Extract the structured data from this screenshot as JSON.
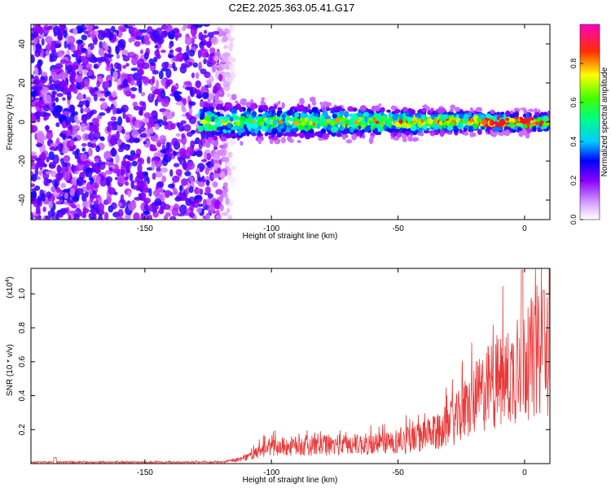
{
  "title": "C2E2.2025.363.05.41.G17",
  "chart_data": [
    {
      "type": "heatmap",
      "xlabel": "Height of straight line (km)",
      "ylabel": "Frequency (Hz)",
      "xlim": [
        -195,
        10
      ],
      "ylim": [
        -50,
        50
      ],
      "xticks": [
        -150,
        -100,
        -50,
        0
      ],
      "yticks": [
        -40,
        -20,
        0,
        20,
        40
      ],
      "xtick_labels": [
        "-150",
        "-100",
        "-50",
        "0"
      ],
      "ytick_labels": [
        "-40",
        "-20",
        "0",
        "20",
        "40"
      ],
      "noise_region": [
        -195,
        -115
      ],
      "signal_region": [
        -128,
        10
      ],
      "signal_center_frequency": 0,
      "colorbar": {
        "label": "Normalized spectral amplitude",
        "range": [
          0,
          1
        ],
        "ticks": [
          0.0,
          0.2,
          0.4,
          0.6,
          0.8
        ],
        "tick_labels": [
          "0.0",
          "0.2",
          "0.4",
          "0.6",
          "0.8"
        ],
        "colormap": [
          "#ffffff",
          "#a000ff",
          "#0000ff",
          "#00ffff",
          "#00ff00",
          "#ffff00",
          "#ff0000",
          "#ff00c0"
        ]
      }
    },
    {
      "type": "line",
      "xlabel": "Height of straight line (km)",
      "ylabel": "SNR (10 * v/v)",
      "y_multiplier_label": "(x10",
      "y_multiplier_exp": "4",
      "y_multiplier_close": ")",
      "xlim": [
        -195,
        10
      ],
      "ylim": [
        0,
        1.15
      ],
      "xticks": [
        -150,
        -100,
        -50,
        0
      ],
      "yticks": [
        0.2,
        0.4,
        0.6,
        0.8,
        1.0
      ],
      "xtick_labels": [
        "-150",
        "-100",
        "-50",
        "0"
      ],
      "ytick_labels": [
        "0.2",
        "0.4",
        "0.6",
        "0.8",
        "1.0"
      ],
      "line_color": "#e83a3a",
      "envelope": {
        "x": [
          -195,
          -120,
          -112,
          -105,
          -100,
          -80,
          -60,
          -45,
          -35,
          -28,
          -22,
          -18,
          -14,
          -10,
          -6,
          -3,
          0,
          4,
          7,
          10
        ],
        "y": [
          0.01,
          0.01,
          0.03,
          0.08,
          0.12,
          0.13,
          0.14,
          0.17,
          0.22,
          0.3,
          0.4,
          0.48,
          0.55,
          0.58,
          0.62,
          0.66,
          0.72,
          0.75,
          0.78,
          0.8
        ]
      }
    }
  ]
}
